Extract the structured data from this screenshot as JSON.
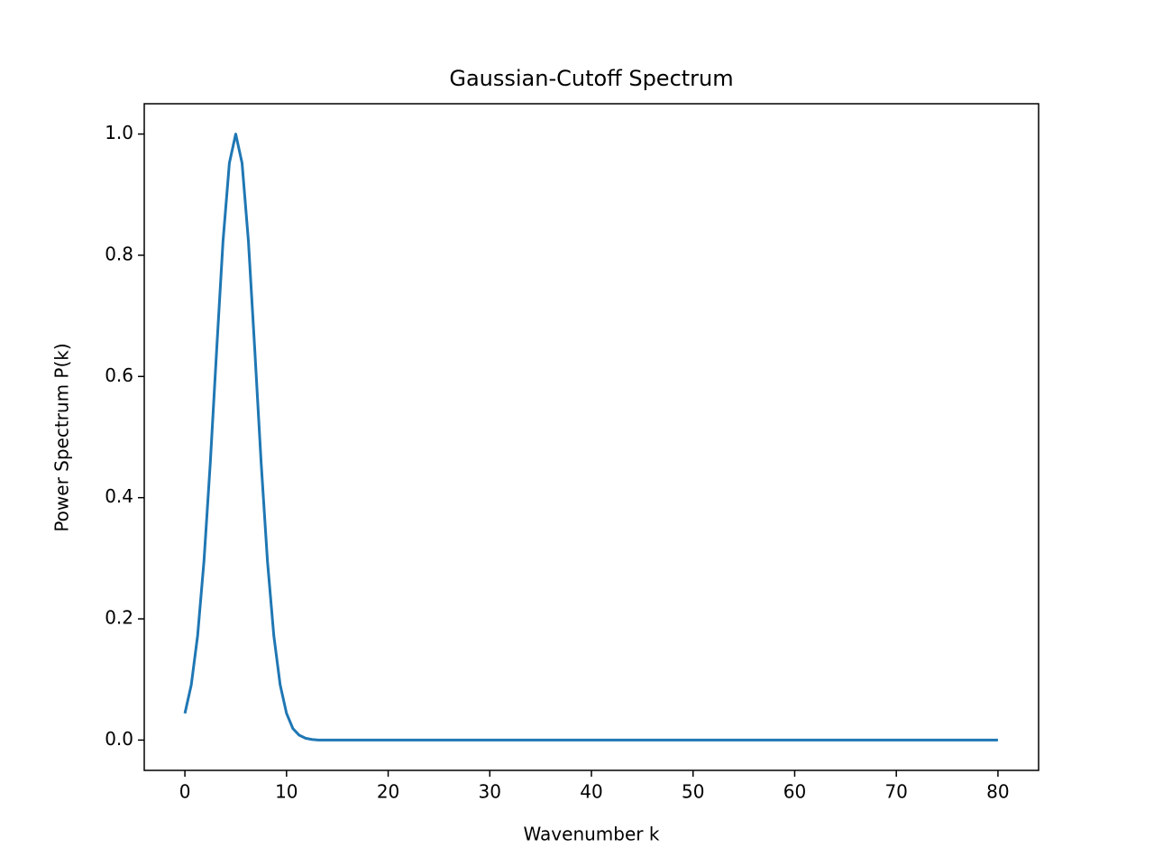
{
  "chart_data": {
    "type": "line",
    "title": "Gaussian-Cutoff Spectrum",
    "xlabel": "Wavenumber k",
    "ylabel": "Power Spectrum P(k)",
    "x": [
      0,
      0.625,
      1.25,
      1.875,
      2.5,
      3.125,
      3.75,
      4.375,
      5,
      5.625,
      6.25,
      6.875,
      7.5,
      8.125,
      8.75,
      9.375,
      10,
      10.625,
      11.25,
      11.875,
      12.5,
      13.125,
      13.75,
      14.375,
      15,
      15.625,
      16.25,
      16.875,
      17.5,
      18.125,
      18.75,
      19.375,
      20,
      20.625,
      21.25,
      21.875,
      22.5,
      23.125,
      23.75,
      24.375,
      25,
      25.625,
      26.25,
      26.875,
      27.5,
      28.125,
      28.75,
      29.375,
      30,
      30.625,
      31.25,
      31.875,
      32.5,
      33.125,
      33.75,
      34.375,
      35,
      35.625,
      36.25,
      36.875,
      37.5,
      38.125,
      38.75,
      39.375,
      40,
      40.625,
      41.25,
      41.875,
      42.5,
      43.125,
      43.75,
      44.375,
      45,
      45.625,
      46.25,
      46.875,
      47.5,
      48.125,
      48.75,
      49.375,
      50,
      50.625,
      51.25,
      51.875,
      52.5,
      53.125,
      53.75,
      54.375,
      55,
      55.625,
      56.25,
      56.875,
      57.5,
      58.125,
      58.75,
      59.375,
      60,
      60.625,
      61.25,
      61.875,
      62.5,
      63.125,
      63.75,
      64.375,
      65,
      65.625,
      66.25,
      66.875,
      67.5,
      68.125,
      68.75,
      69.375,
      70,
      70.625,
      71.25,
      71.875,
      72.5,
      73.125,
      73.75,
      74.375,
      75,
      75.625,
      76.25,
      76.875,
      77.5,
      78.125,
      78.75,
      79.375,
      80
    ],
    "series": [
      {
        "name": "P(k)",
        "color": "#1f77b4",
        "values": [
          0.044,
          0.091,
          0.172,
          0.295,
          0.458,
          0.644,
          0.823,
          0.952,
          1,
          0.952,
          0.823,
          0.644,
          0.458,
          0.295,
          0.172,
          0.091,
          0.044,
          0.019,
          0.008,
          0.003,
          0.001,
          0,
          0,
          0,
          0,
          0,
          0,
          0,
          0,
          0,
          0,
          0,
          0,
          0,
          0,
          0,
          0,
          0,
          0,
          0,
          0,
          0,
          0,
          0,
          0,
          0,
          0,
          0,
          0,
          0,
          0,
          0,
          0,
          0,
          0,
          0,
          0,
          0,
          0,
          0,
          0,
          0,
          0,
          0,
          0,
          0,
          0,
          0,
          0,
          0,
          0,
          0,
          0,
          0,
          0,
          0,
          0,
          0,
          0,
          0,
          0,
          0,
          0,
          0,
          0,
          0,
          0,
          0,
          0,
          0,
          0,
          0,
          0,
          0,
          0,
          0,
          0,
          0,
          0,
          0,
          0,
          0,
          0,
          0,
          0,
          0,
          0,
          0,
          0,
          0,
          0,
          0,
          0,
          0,
          0,
          0,
          0,
          0,
          0,
          0,
          0,
          0,
          0,
          0,
          0,
          0,
          0,
          0,
          0
        ]
      }
    ],
    "xlim": [
      -4,
      84
    ],
    "ylim": [
      -0.05,
      1.05
    ],
    "xticks": [
      0,
      10,
      20,
      30,
      40,
      50,
      60,
      70,
      80
    ],
    "yticks": [
      {
        "value": 0,
        "label": "0.0"
      },
      {
        "value": 0.2,
        "label": "0.2"
      },
      {
        "value": 0.4,
        "label": "0.4"
      },
      {
        "value": 0.6,
        "label": "0.6"
      },
      {
        "value": 0.8,
        "label": "0.8"
      },
      {
        "value": 1,
        "label": "1.0"
      }
    ],
    "grid": false
  }
}
